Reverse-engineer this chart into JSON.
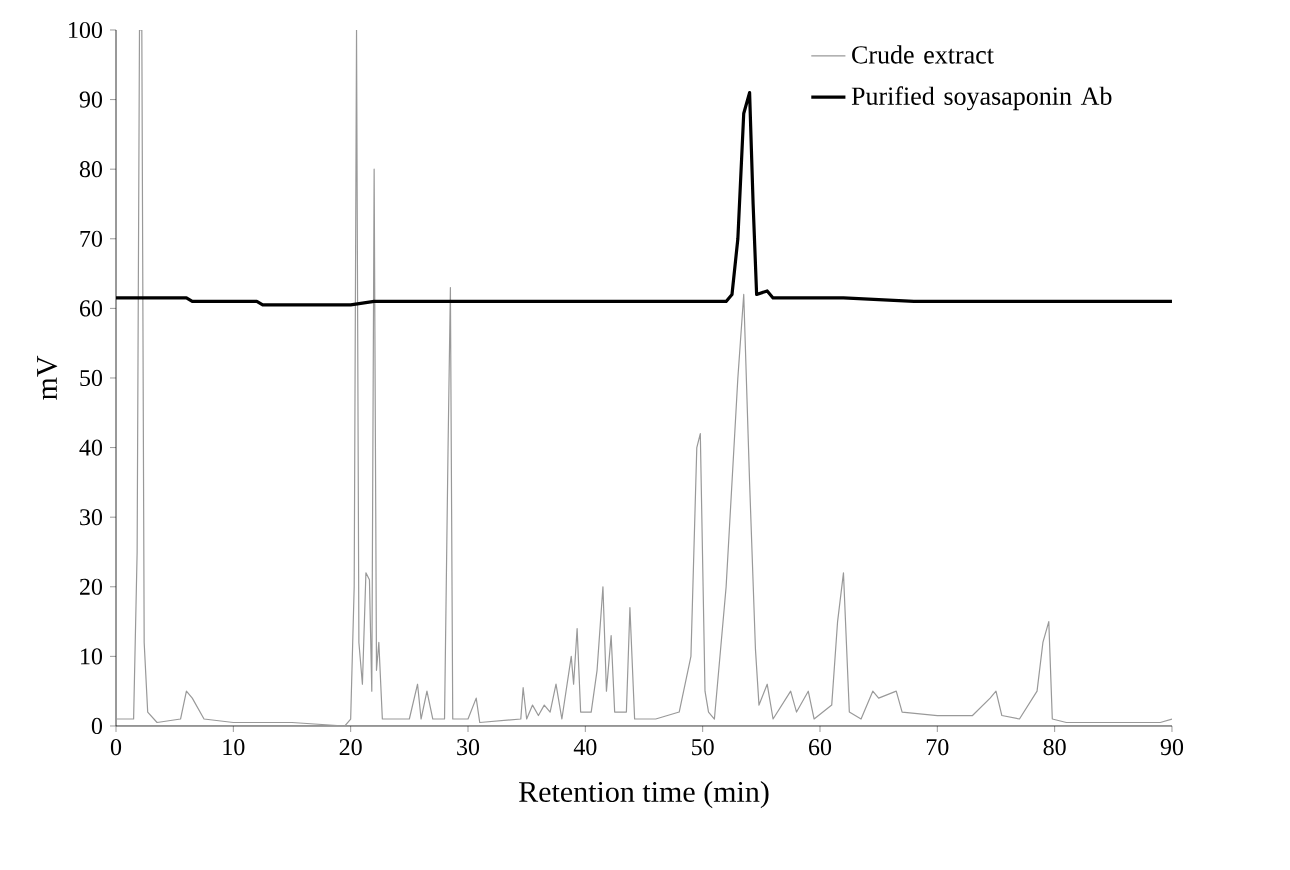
{
  "chart_data": {
    "type": "line",
    "xlabel": "Retention time (min)",
    "ylabel": "mV",
    "xlim": [
      0,
      90
    ],
    "ylim": [
      0,
      100
    ],
    "xticks": [
      0,
      10,
      20,
      30,
      40,
      50,
      60,
      70,
      80,
      90
    ],
    "yticks": [
      0,
      10,
      20,
      30,
      40,
      50,
      60,
      70,
      80,
      90,
      100
    ],
    "grid": false,
    "legend": "top right",
    "marker": "none",
    "line_style": "solid",
    "series": [
      {
        "name": "Crude extract",
        "color": "#999999",
        "x": [
          0,
          1.5,
          1.8,
          2,
          2.2,
          2.4,
          2.7,
          3.5,
          5.5,
          6,
          6.5,
          7.5,
          10,
          15,
          19.5,
          20,
          20.3,
          20.5,
          20.7,
          21,
          21.3,
          21.6,
          21.8,
          22,
          22.2,
          22.4,
          22.7,
          25,
          25.7,
          26,
          26.5,
          27,
          28,
          28.3,
          28.5,
          28.7,
          30,
          30.7,
          31,
          34.5,
          34.7,
          35,
          35.5,
          36,
          36.5,
          37,
          37.5,
          38,
          38.8,
          39,
          39.3,
          39.6,
          40.5,
          41,
          41.5,
          41.8,
          42.2,
          42.5,
          43.5,
          43.8,
          44.2,
          46,
          48,
          49,
          49.5,
          49.8,
          50.2,
          50.5,
          51,
          52,
          53,
          53.5,
          54,
          54.5,
          54.8,
          55.5,
          56,
          57.5,
          58,
          59,
          59.5,
          61,
          61.5,
          62,
          62.5,
          63.5,
          64.5,
          65,
          66.5,
          67,
          70,
          73,
          74.5,
          75,
          75.5,
          77,
          78.5,
          79,
          79.5,
          79.8,
          81,
          89,
          90
        ],
        "values": [
          1,
          1,
          25,
          100,
          100,
          12,
          2,
          0.5,
          1,
          5,
          4,
          1,
          0.5,
          0.5,
          0,
          1,
          20,
          100,
          12,
          6,
          22,
          21,
          5,
          80,
          8,
          12,
          1,
          1,
          6,
          1,
          5,
          1,
          1,
          40,
          63,
          1,
          1,
          4,
          0.5,
          1,
          5.5,
          1,
          3,
          1.5,
          3,
          2,
          6,
          1,
          10,
          6,
          14,
          2,
          2,
          8,
          20,
          5,
          13,
          2,
          2,
          17,
          1,
          1,
          2,
          10,
          40,
          42,
          5,
          2,
          1,
          20,
          50,
          62,
          35,
          11,
          3,
          6,
          1,
          5,
          2,
          5,
          1,
          3,
          15,
          22,
          2,
          1,
          5,
          4,
          5,
          2,
          1.5,
          1.5,
          4,
          5,
          1.5,
          1,
          5,
          12,
          15,
          1,
          0.5,
          0.5,
          1
        ]
      },
      {
        "name": "Purified soyasaponin Ab",
        "color": "#000000",
        "x": [
          0,
          6,
          6.5,
          12,
          12.5,
          20,
          22,
          38,
          52,
          52.5,
          53,
          53.5,
          54,
          54.3,
          54.6,
          55.5,
          56,
          62,
          68,
          85,
          90
        ],
        "values": [
          61.5,
          61.5,
          61,
          61,
          60.5,
          60.5,
          61,
          61,
          61,
          62,
          70,
          88,
          91,
          75,
          62,
          62.5,
          61.5,
          61.5,
          61,
          61,
          61
        ]
      }
    ]
  }
}
